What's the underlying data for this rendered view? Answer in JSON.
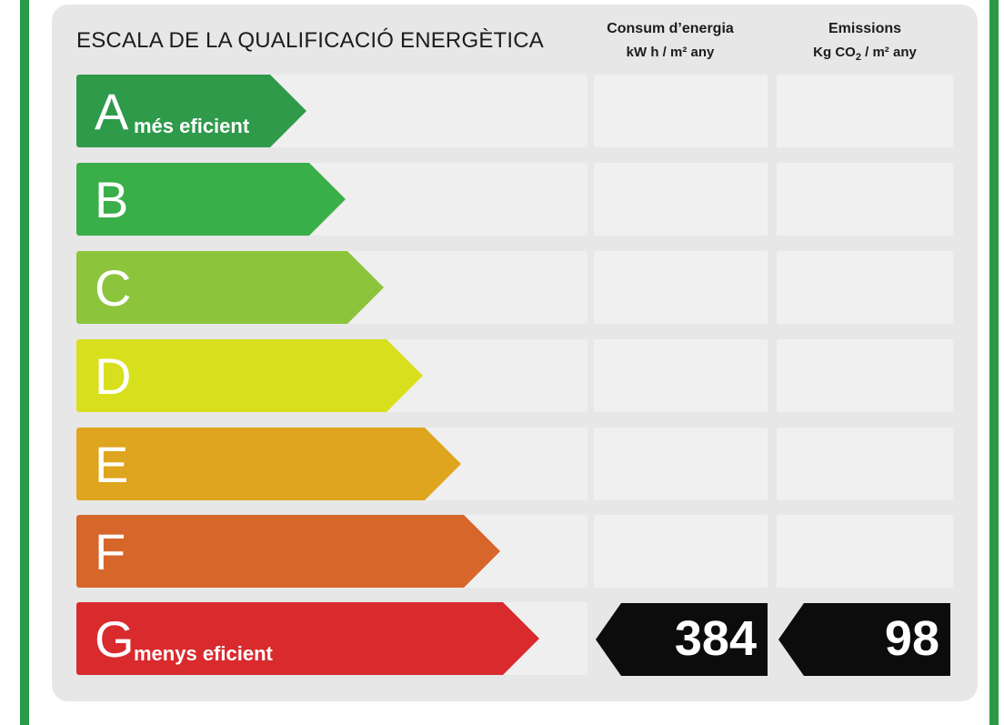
{
  "title": "ESCALA DE LA QUALIFICACIÓ ENERGÈTICA",
  "columns": {
    "consumption": {
      "label": "Consum d’energia",
      "unit": "kW h / m² any"
    },
    "emissions": {
      "label": "Emissions",
      "unit_prefix": "Kg CO",
      "unit_sub": "2",
      "unit_suffix": " / m² any"
    }
  },
  "classes": [
    {
      "letter": "A",
      "tag": "més eficient",
      "color": "#2e9a4a"
    },
    {
      "letter": "B",
      "tag": "",
      "color": "#3aae48"
    },
    {
      "letter": "C",
      "tag": "",
      "color": "#8cc43c"
    },
    {
      "letter": "D",
      "tag": "",
      "color": "#d8e01e"
    },
    {
      "letter": "E",
      "tag": "",
      "color": "#e0a51e"
    },
    {
      "letter": "F",
      "tag": "",
      "color": "#d6662a"
    },
    {
      "letter": "G",
      "tag": "menys eficient",
      "color": "#d92a2e"
    }
  ],
  "rating": {
    "class": "G",
    "consumption_value": "384",
    "emissions_value": "98"
  },
  "colors": {
    "frame": "#2a9a48",
    "panel": "#e7e7e7",
    "value_box": "#0c0c0c"
  }
}
